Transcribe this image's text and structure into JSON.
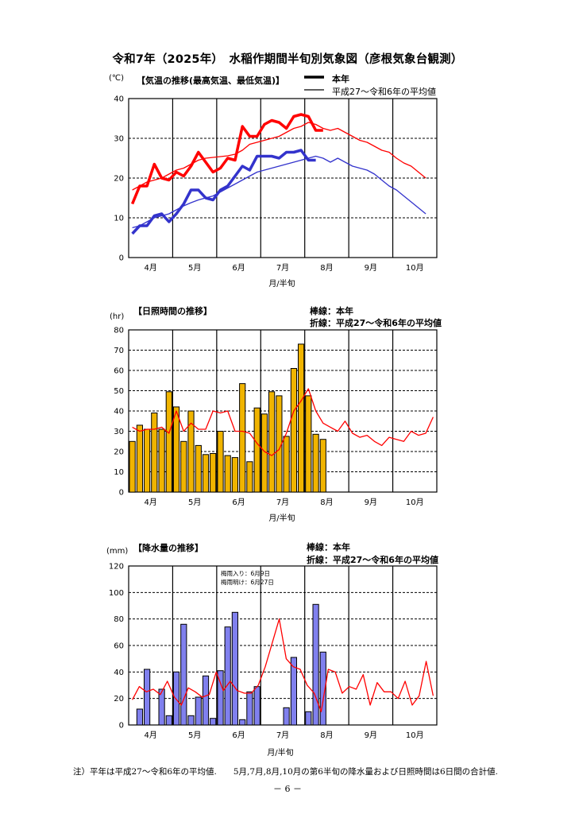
{
  "page": {
    "title": "令和7年（2025年）　水稲作期間半旬別気象図（彦根気象台観測）",
    "note": "注）平年は平成27～令和6年の平均値.　　5月,7月,8月,10月の第6半旬の降水量および日照時間は6日間の合計値.",
    "page_number": "－ 6 －"
  },
  "colors": {
    "max_temp": "#ff0000",
    "min_temp": "#3333cc",
    "sunshine_bar": "#f0b400",
    "rain_bar": "#8080ee",
    "average_line": "#ff0000"
  },
  "chart_data": [
    {
      "type": "line",
      "title": "【気温の推移(最高気温、最低気温)】",
      "unit": "(℃)",
      "xlabel": "月/半旬",
      "months": [
        "4月",
        "5月",
        "6月",
        "7月",
        "8月",
        "9月",
        "10月"
      ],
      "ylim": [
        0,
        40
      ],
      "yticks": [
        0,
        10,
        20,
        30,
        40
      ],
      "grid": true,
      "legend": {
        "current_label": "本年",
        "average_label": "平成27～令和6年の平均値",
        "position": "top-right"
      },
      "series": [
        {
          "name": "最高気温 本年",
          "values": [
            13.5,
            18,
            18,
            23.5,
            20,
            19.5,
            21.5,
            20.5,
            23,
            26.5,
            24,
            21.5,
            22.5,
            25,
            24.5,
            33,
            30.5,
            30.5,
            33.5,
            34.5,
            34,
            32.5,
            35.5,
            36,
            35.5,
            32,
            32
          ]
        },
        {
          "name": "最高気温 平均",
          "values": [
            17,
            18,
            19,
            19.5,
            20,
            21,
            22,
            22.5,
            23.5,
            24.5,
            25,
            25.2,
            25.4,
            25.6,
            26,
            27,
            28.5,
            29,
            29.5,
            30,
            30.5,
            31.5,
            32.5,
            33,
            34,
            33.5,
            32.5,
            32,
            32.5,
            31.5,
            30.5,
            29.5,
            29,
            28,
            27,
            26.5,
            25,
            23.8,
            23,
            21.5,
            20
          ]
        },
        {
          "name": "最低気温 本年",
          "values": [
            6,
            8,
            8,
            10.5,
            11,
            9,
            11,
            13.5,
            17,
            17,
            15,
            14.5,
            17,
            18,
            20.5,
            23,
            22,
            25.5,
            25.5,
            25.5,
            25,
            26.5,
            26.5,
            27,
            24.5,
            24.5
          ]
        },
        {
          "name": "最低気温 平均",
          "values": [
            7.5,
            8,
            9,
            10,
            10.5,
            11,
            12,
            13,
            13.8,
            14.5,
            15,
            15.5,
            16.5,
            17.5,
            18.5,
            19.5,
            20.5,
            21.5,
            22,
            22.5,
            23,
            23.5,
            24,
            24.5,
            25,
            25.5,
            25,
            24,
            25,
            24,
            23,
            22.5,
            22,
            21,
            19.5,
            18,
            17,
            15.5,
            14,
            12.5,
            11
          ]
        }
      ]
    },
    {
      "type": "bar",
      "title": "【日照時間の推移】",
      "unit": "(hr)",
      "xlabel": "月/半旬",
      "months": [
        "4月",
        "5月",
        "6月",
        "7月",
        "8月",
        "9月",
        "10月"
      ],
      "ylim": [
        0,
        80
      ],
      "yticks": [
        0,
        10,
        20,
        30,
        40,
        50,
        60,
        70,
        80
      ],
      "grid": true,
      "legend": {
        "bar_label": "棒線：本年",
        "line_label": "折線：平成27～令和6年の平均値",
        "position": "top-right"
      },
      "series": [
        {
          "name": "本年",
          "values": [
            25,
            33,
            31,
            39,
            31,
            49.5,
            42,
            25,
            40,
            23,
            18.5,
            19,
            30,
            18,
            17,
            53.5,
            15,
            41.5,
            38.5,
            49.5,
            47.5,
            27.5,
            61,
            73,
            47.5,
            28.5,
            26
          ]
        },
        {
          "name": "平均",
          "values": [
            32,
            30,
            31,
            31,
            32,
            29,
            40,
            30,
            34,
            31,
            31,
            40,
            39,
            40,
            30,
            30,
            29,
            24,
            20,
            18,
            21,
            29,
            40,
            45,
            51,
            40,
            34,
            32,
            30,
            35,
            29,
            27,
            28,
            25,
            23,
            27,
            26,
            25,
            30,
            28,
            29,
            37
          ]
        }
      ]
    },
    {
      "type": "bar",
      "title": "【降水量の推移】",
      "unit": "(mm)",
      "xlabel": "月/半旬",
      "months": [
        "4月",
        "5月",
        "6月",
        "7月",
        "8月",
        "9月",
        "10月"
      ],
      "ylim": [
        0,
        120
      ],
      "yticks": [
        0,
        20,
        40,
        60,
        80,
        100,
        120
      ],
      "grid": true,
      "legend": {
        "bar_label": "棒線：本年",
        "line_label": "折線：平成27～令和6年の平均値",
        "position": "top-right"
      },
      "annotation": [
        "梅雨入り：6月9日",
        "梅雨明け：6月27日"
      ],
      "series": [
        {
          "name": "本年",
          "values": [
            0,
            12,
            42,
            0,
            27,
            7,
            40,
            76,
            7,
            21,
            37,
            5,
            41,
            74,
            85,
            4,
            25,
            29,
            0,
            0,
            0,
            13,
            51,
            0,
            10,
            91,
            55
          ]
        },
        {
          "name": "平均",
          "values": [
            19,
            29,
            25,
            27,
            23,
            33,
            21,
            15,
            28,
            25,
            21,
            23,
            40,
            26,
            33,
            26,
            24,
            24,
            30,
            44,
            62,
            80,
            50,
            44,
            42,
            30,
            24,
            10,
            42,
            40,
            24,
            29,
            27,
            38,
            15,
            32,
            25,
            25,
            20,
            33,
            15,
            22,
            48,
            22
          ]
        }
      ]
    }
  ]
}
